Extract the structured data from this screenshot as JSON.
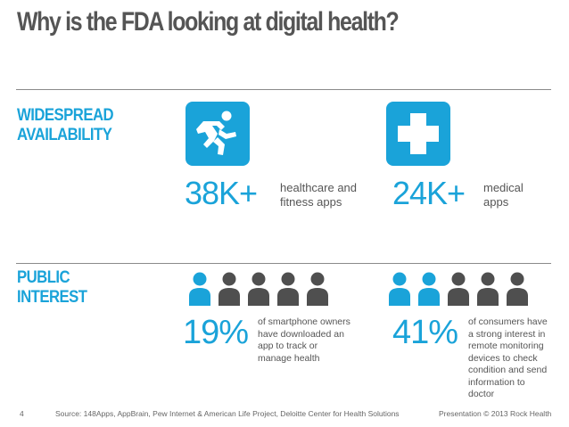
{
  "title": "Why is the FDA looking at digital health?",
  "sections": {
    "availability": {
      "label_line1": "WIDESPREAD",
      "label_line2": "AVAILABILITY",
      "stat1": {
        "value": "38K+",
        "line1": "healthcare and",
        "line2": "fitness apps",
        "icon": "running-person-icon"
      },
      "stat2": {
        "value": "24K+",
        "line1": "medical",
        "line2": "apps",
        "icon": "medical-cross-icon"
      }
    },
    "interest": {
      "label_line1": "PUBLIC",
      "label_line2": "INTEREST",
      "stat1": {
        "value": "19%",
        "lines": [
          "of smartphone owners",
          "have downloaded an",
          "app to track or",
          "manage health"
        ],
        "highlighted_people": 1,
        "total_people": 5
      },
      "stat2": {
        "value": "41%",
        "lines": [
          "of consumers have",
          "a strong interest in",
          "remote monitoring",
          "devices to check",
          "condition and send",
          "information to",
          "doctor"
        ],
        "highlighted_people": 2,
        "total_people": 5
      }
    }
  },
  "footer": {
    "page_number": "4",
    "source": "Source: 148Apps, AppBrain, Pew Internet & American Life Project, Deloitte Center for Health Solutions",
    "credit": "Presentation © 2013 Rock Health"
  },
  "colors": {
    "accent": "#1aa3d9",
    "person_inactive": "#4f4f4f",
    "text": "#555555"
  }
}
